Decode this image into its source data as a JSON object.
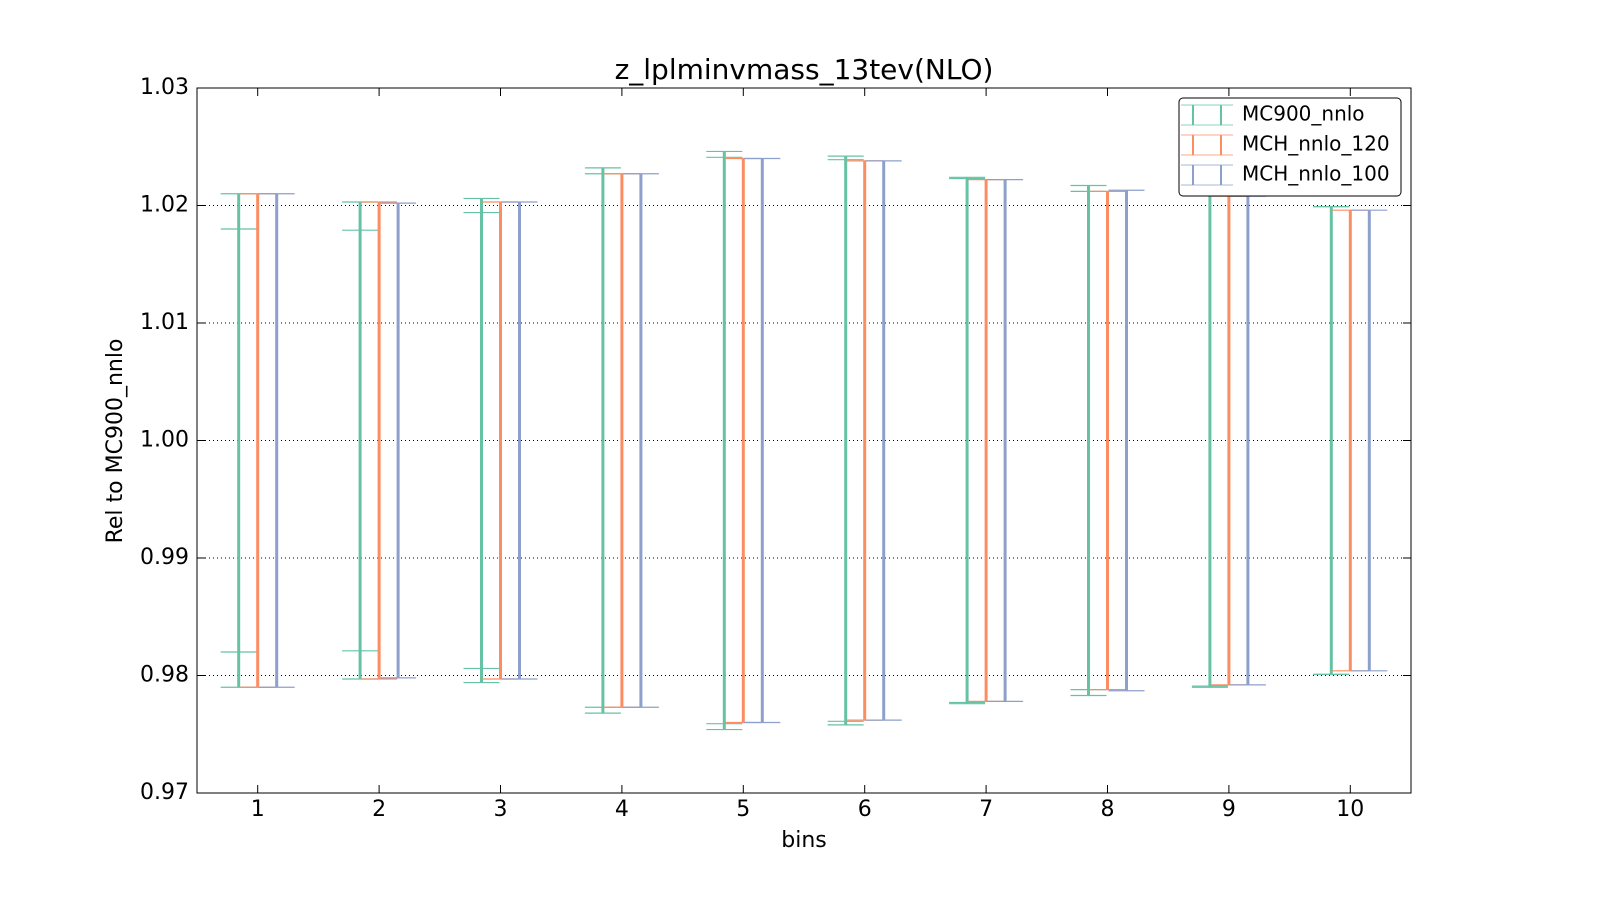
{
  "chart_data": {
    "type": "errorbar",
    "title": "z_lplminvmass_13tev(NLO)",
    "x_label": "bins",
    "y_label": "Rel to MC900_nnlo",
    "x": [
      1,
      2,
      3,
      4,
      5,
      6,
      7,
      8,
      9,
      10
    ],
    "xlim": [
      0.5,
      10.5
    ],
    "xticks": [
      1,
      2,
      3,
      4,
      5,
      6,
      7,
      8,
      9,
      10
    ],
    "ylim": [
      0.97,
      1.03
    ],
    "yticks": [
      0.97,
      0.98,
      0.99,
      {
        "value": 1.0,
        "label": "1.00"
      },
      1.01,
      1.02,
      1.03
    ],
    "grid": true,
    "legend": "upper right",
    "series": [
      {
        "name": "MC900_nnlo",
        "color": "#66c2a5",
        "values": [
          1,
          1,
          1,
          1,
          1,
          1,
          1,
          1,
          1,
          1
        ],
        "errors": [
          0.021,
          0.0203,
          0.0206,
          0.0232,
          0.0246,
          0.0242,
          0.0224,
          0.0217,
          0.021,
          0.0199
        ],
        "inner_errors": [
          0.018,
          0.0179,
          0.0194,
          0.0227,
          0.0241,
          0.0239,
          0.0223,
          0.0212,
          0.0209,
          0.0199
        ]
      },
      {
        "name": "MCH_nnlo_120",
        "color": "#fc8d62",
        "values": [
          1,
          1,
          1,
          1,
          1,
          1,
          1,
          1,
          1,
          1
        ],
        "errors": [
          0.021,
          0.0203,
          0.0203,
          0.0227,
          0.024,
          0.0238,
          0.0222,
          0.0212,
          0.0208,
          0.0196
        ]
      },
      {
        "name": "MCH_nnlo_100",
        "color": "#8da0cb",
        "values": [
          1,
          1,
          1,
          1,
          1,
          1,
          1,
          1,
          1,
          1
        ],
        "errors": [
          0.021,
          0.0202,
          0.0203,
          0.0227,
          0.024,
          0.0238,
          0.0222,
          0.0213,
          0.0208,
          0.0196
        ]
      }
    ]
  }
}
